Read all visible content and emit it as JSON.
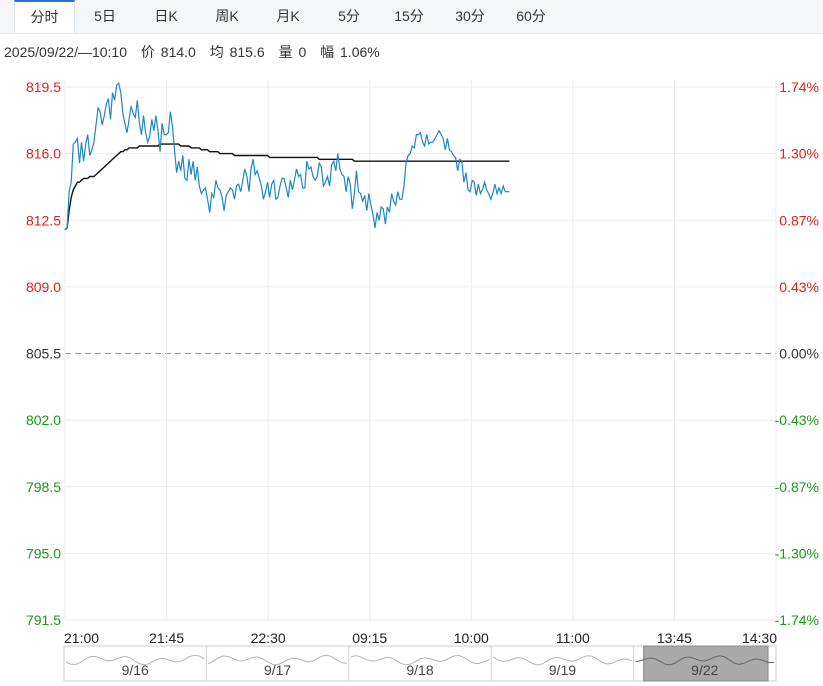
{
  "tabs": [
    {
      "label": "分时",
      "active": true
    },
    {
      "label": "5日",
      "active": false
    },
    {
      "label": "日K",
      "active": false
    },
    {
      "label": "周K",
      "active": false
    },
    {
      "label": "月K",
      "active": false
    },
    {
      "label": "5分",
      "active": false
    },
    {
      "label": "15分",
      "active": false
    },
    {
      "label": "30分",
      "active": false
    },
    {
      "label": "60分",
      "active": false
    }
  ],
  "info": {
    "datetime": "2025/09/22/—10:10",
    "price_label": "价",
    "price": "814.0",
    "avg_label": "均",
    "avg": "815.6",
    "volume_label": "量",
    "volume": "0",
    "amplitude_label": "幅",
    "amplitude": "1.06%"
  },
  "colors": {
    "up": "#e0201a",
    "down": "#1a9a1a",
    "neutral": "#333333",
    "price_line": "#1f86c4",
    "avg_line": "#111111",
    "grid": "#e8ebef"
  },
  "chart_data": {
    "type": "line",
    "prev_close": 805.5,
    "ylim": [
      791.5,
      819.5
    ],
    "left_ticks": [
      {
        "label": "819.5",
        "value": 819.5,
        "tone": "up"
      },
      {
        "label": "816.0",
        "value": 816.0,
        "tone": "up"
      },
      {
        "label": "812.5",
        "value": 812.5,
        "tone": "up"
      },
      {
        "label": "809.0",
        "value": 809.0,
        "tone": "up"
      },
      {
        "label": "805.5",
        "value": 805.5,
        "tone": "neutral"
      },
      {
        "label": "802.0",
        "value": 802.0,
        "tone": "down"
      },
      {
        "label": "798.5",
        "value": 798.5,
        "tone": "down"
      },
      {
        "label": "795.0",
        "value": 795.0,
        "tone": "down"
      },
      {
        "label": "791.5",
        "value": 791.5,
        "tone": "down"
      }
    ],
    "right_ticks": [
      {
        "label": "1.74%",
        "value": 819.5,
        "tone": "up"
      },
      {
        "label": "1.30%",
        "value": 816.0,
        "tone": "up"
      },
      {
        "label": "0.87%",
        "value": 812.5,
        "tone": "up"
      },
      {
        "label": "0.43%",
        "value": 809.0,
        "tone": "up"
      },
      {
        "label": "0.00%",
        "value": 805.5,
        "tone": "neutral"
      },
      {
        "label": "-0.43%",
        "value": 802.0,
        "tone": "down"
      },
      {
        "label": "-0.87%",
        "value": 798.5,
        "tone": "down"
      },
      {
        "label": "-1.30%",
        "value": 795.0,
        "tone": "down"
      },
      {
        "label": "-1.74%",
        "value": 791.5,
        "tone": "down"
      }
    ],
    "x_ticks": [
      "21:00",
      "21:45",
      "22:30",
      "09:15",
      "10:00",
      "11:00",
      "13:45",
      "14:30"
    ],
    "x_total_points": 345,
    "price": [
      812.0,
      812.1,
      814.0,
      814.5,
      816.5,
      816.6,
      816.8,
      815.5,
      816.6,
      815.6,
      816.5,
      817.0,
      815.9,
      816.2,
      816.6,
      817.5,
      818.4,
      818.2,
      817.5,
      818.0,
      818.6,
      818.9,
      817.8,
      819.2,
      818.8,
      819.6,
      819.7,
      819.2,
      818.1,
      817.6,
      817.1,
      817.8,
      818.5,
      818.1,
      817.9,
      818.8,
      817.6,
      817.0,
      818.0,
      817.1,
      816.6,
      816.9,
      817.8,
      817.2,
      818.0,
      817.2,
      816.1,
      817.6,
      817.0,
      817.0,
      817.1,
      818.2,
      817.4,
      816.2,
      815.0,
      815.6,
      815.1,
      815.9,
      814.7,
      814.6,
      815.7,
      814.9,
      815.6,
      814.6,
      815.3,
      814.3,
      813.9,
      814.1,
      814.2,
      813.6,
      812.9,
      813.9,
      813.7,
      814.6,
      814.2,
      814.1,
      813.7,
      813.0,
      813.8,
      814.0,
      814.2,
      814.1,
      813.6,
      814.3,
      814.4,
      814.0,
      814.6,
      815.2,
      814.8,
      814.0,
      815.2,
      815.7,
      814.9,
      815.1,
      814.7,
      814.3,
      813.6,
      814.0,
      814.5,
      813.7,
      814.4,
      814.6,
      813.6,
      813.7,
      814.3,
      814.7,
      814.7,
      814.2,
      813.7,
      814.6,
      814.1,
      814.6,
      815.2,
      814.8,
      814.9,
      814.2,
      814.2,
      815.6,
      815.2,
      815.3,
      814.8,
      814.6,
      814.8,
      815.5,
      815.3,
      814.3,
      814.5,
      814.8,
      814.3,
      815.4,
      815.6,
      815.1,
      816.0,
      815.2,
      814.9,
      814.8,
      814.0,
      814.8,
      814.4,
      813.1,
      813.9,
      815.1,
      814.0,
      813.9,
      813.5,
      813.8,
      813.0,
      813.9,
      813.3,
      812.8,
      812.1,
      812.9,
      812.5,
      813.2,
      813.1,
      812.3,
      813.2,
      812.9,
      813.9,
      813.5,
      813.3,
      814.0,
      813.6,
      813.6,
      814.3,
      815.5,
      815.9,
      816.0,
      816.4,
      816.3,
      817.0,
      817.0,
      817.1,
      816.6,
      816.4,
      817.0,
      816.5,
      816.6,
      816.6,
      816.8,
      817.0,
      817.2,
      817.0,
      816.8,
      816.2,
      816.8,
      816.2,
      816.1,
      815.9,
      815.8,
      815.1,
      815.7,
      815.6,
      814.5,
      815.0,
      814.1,
      814.0,
      814.6,
      814.5,
      813.8,
      814.4,
      813.9,
      814.1,
      814.5,
      814.1,
      813.9,
      813.6,
      813.9,
      814.4,
      813.9,
      814.2,
      813.9,
      814.3,
      814.0,
      814.0,
      814.0
    ],
    "avg": [
      812.0,
      812.1,
      813.0,
      813.7,
      814.1,
      814.3,
      814.5,
      814.5,
      814.6,
      814.7,
      814.7,
      814.7,
      814.8,
      814.8,
      814.8,
      814.9,
      815.0,
      815.1,
      815.2,
      815.3,
      815.4,
      815.5,
      815.6,
      815.7,
      815.8,
      815.9,
      816.0,
      816.1,
      816.1,
      816.2,
      816.2,
      816.3,
      816.3,
      816.3,
      816.3,
      816.3,
      816.4,
      816.4,
      816.4,
      816.4,
      816.4,
      816.4,
      816.4,
      816.4,
      816.4,
      816.4,
      816.5,
      816.5,
      816.5,
      816.5,
      816.5,
      816.5,
      816.5,
      816.5,
      816.5,
      816.5,
      816.4,
      816.4,
      816.4,
      816.4,
      816.4,
      816.3,
      816.3,
      816.3,
      816.3,
      816.3,
      816.2,
      816.2,
      816.2,
      816.2,
      816.1,
      816.1,
      816.1,
      816.1,
      816.1,
      816.0,
      816.0,
      816.0,
      816.0,
      816.0,
      816.0,
      816.0,
      815.9,
      815.9,
      815.9,
      815.9,
      815.9,
      815.9,
      815.9,
      815.9,
      815.9,
      815.9,
      815.9,
      815.9,
      815.9,
      815.9,
      815.9,
      815.9,
      815.9,
      815.8,
      815.8,
      815.8,
      815.8,
      815.8,
      815.8,
      815.8,
      815.8,
      815.8,
      815.8,
      815.8,
      815.8,
      815.8,
      815.8,
      815.8,
      815.8,
      815.8,
      815.8,
      815.8,
      815.8,
      815.8,
      815.8,
      815.8,
      815.8,
      815.7,
      815.7,
      815.7,
      815.7,
      815.7,
      815.7,
      815.7,
      815.7,
      815.7,
      815.7,
      815.7,
      815.7,
      815.7,
      815.7,
      815.7,
      815.7,
      815.7,
      815.6,
      815.6,
      815.6,
      815.6,
      815.6,
      815.6,
      815.6,
      815.6,
      815.6,
      815.6,
      815.6,
      815.6,
      815.6,
      815.6,
      815.6,
      815.6,
      815.6,
      815.6,
      815.6,
      815.6,
      815.6,
      815.6,
      815.6,
      815.6,
      815.6,
      815.6,
      815.6,
      815.6,
      815.6,
      815.6,
      815.6,
      815.6,
      815.6,
      815.6,
      815.6,
      815.6,
      815.6,
      815.6,
      815.6,
      815.6,
      815.6,
      815.6,
      815.6,
      815.6,
      815.6,
      815.6,
      815.6,
      815.6,
      815.6,
      815.6,
      815.6,
      815.6,
      815.6,
      815.6,
      815.6,
      815.6,
      815.6,
      815.6,
      815.6,
      815.6,
      815.6,
      815.6,
      815.6,
      815.6,
      815.6,
      815.6,
      815.6,
      815.6,
      815.6,
      815.6,
      815.6,
      815.6,
      815.6,
      815.6,
      815.6,
      815.6
    ]
  },
  "navigator": {
    "days": [
      "9/16",
      "9/17",
      "9/18",
      "9/19",
      "9/22"
    ],
    "selected": "9/22"
  }
}
